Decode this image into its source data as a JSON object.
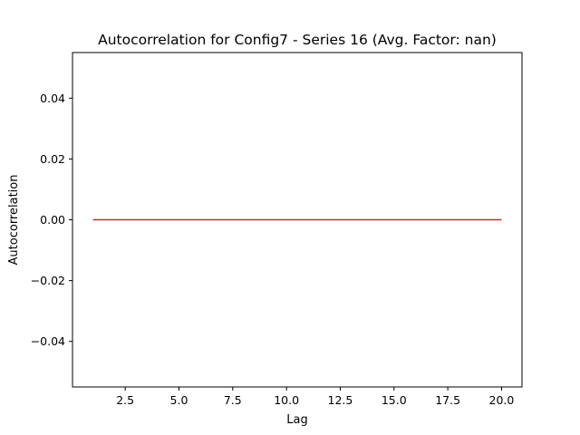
{
  "chart_data": {
    "type": "line",
    "title": "Autocorrelation for Config7 - Series 16 (Avg. Factor: nan)",
    "xlabel": "Lag",
    "ylabel": "Autocorrelation",
    "xlim": [
      0.05,
      20.95
    ],
    "ylim": [
      -0.055,
      0.055
    ],
    "x_ticks": [
      2.5,
      5.0,
      7.5,
      10.0,
      12.5,
      15.0,
      17.5,
      20.0
    ],
    "x_tick_labels": [
      "2.5",
      "5.0",
      "7.5",
      "10.0",
      "12.5",
      "15.0",
      "17.5",
      "20.0"
    ],
    "y_ticks": [
      0.04,
      0.02,
      0.0,
      -0.02,
      -0.04
    ],
    "y_tick_labels": [
      "0.04",
      "0.02",
      "0.00",
      "−0.02",
      "−0.04"
    ],
    "grid": false,
    "series": [
      {
        "color": "#d62728",
        "x": [
          1,
          2,
          3,
          4,
          5,
          6,
          7,
          8,
          9,
          10,
          11,
          12,
          13,
          14,
          15,
          16,
          17,
          18,
          19,
          20
        ],
        "y": [
          0,
          0,
          0,
          0,
          0,
          0,
          0,
          0,
          0,
          0,
          0,
          0,
          0,
          0,
          0,
          0,
          0,
          0,
          0,
          0
        ]
      }
    ]
  }
}
